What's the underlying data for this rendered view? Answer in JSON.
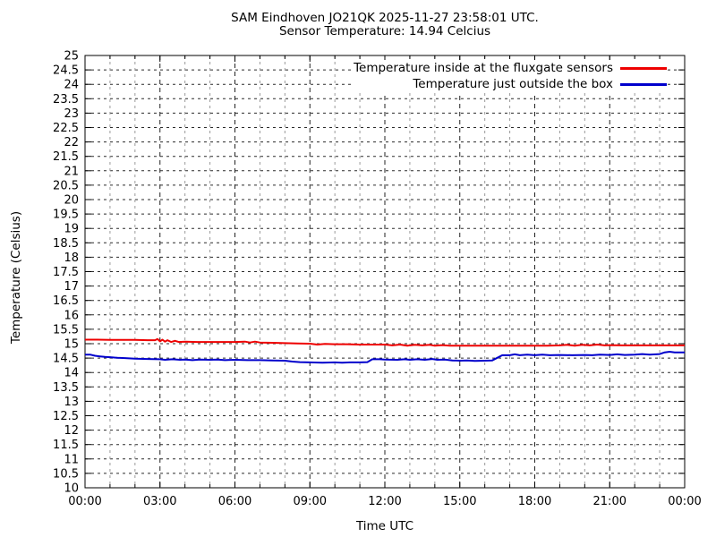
{
  "chart_data": {
    "type": "line",
    "title": "SAM Eindhoven JO21QK 2025-11-27 23:58:01 UTC.",
    "subtitle": "Sensor Temperature: 14.94 Celcius",
    "xlabel": "Time UTC",
    "ylabel": "Temperature (Celsius)",
    "x_unit": "hours",
    "xlim": [
      0,
      24
    ],
    "ylim": [
      10,
      25
    ],
    "ytick_step": 0.5,
    "x_minor_step_hours": 1,
    "grid": true,
    "legend_position": "top-right-inside",
    "xtick_hours": [
      0,
      3,
      6,
      9,
      12,
      15,
      18,
      21,
      24
    ],
    "xtick_labels": [
      "00:00",
      "03:00",
      "06:00",
      "09:00",
      "12:00",
      "15:00",
      "18:00",
      "21:00",
      "00:00"
    ],
    "series": [
      {
        "name": "Temperature inside at the fluxgate sensors",
        "color": "#ee0000",
        "points": [
          [
            0,
            15.14
          ],
          [
            0.5,
            15.14
          ],
          [
            1,
            15.13
          ],
          [
            1.5,
            15.13
          ],
          [
            2,
            15.13
          ],
          [
            2.5,
            15.12
          ],
          [
            2.8,
            15.12
          ],
          [
            2.9,
            15.16
          ],
          [
            3.0,
            15.08
          ],
          [
            3.1,
            15.14
          ],
          [
            3.2,
            15.07
          ],
          [
            3.3,
            15.12
          ],
          [
            3.45,
            15.06
          ],
          [
            3.6,
            15.1
          ],
          [
            3.75,
            15.06
          ],
          [
            4,
            15.07
          ],
          [
            4.5,
            15.06
          ],
          [
            5,
            15.06
          ],
          [
            5.5,
            15.06
          ],
          [
            6,
            15.06
          ],
          [
            6.4,
            15.07
          ],
          [
            6.6,
            15.04
          ],
          [
            6.8,
            15.07
          ],
          [
            7,
            15.04
          ],
          [
            7.5,
            15.03
          ],
          [
            8,
            15.02
          ],
          [
            8.5,
            15.01
          ],
          [
            9,
            15.0
          ],
          [
            9.3,
            14.97
          ],
          [
            9.6,
            14.99
          ],
          [
            10,
            14.98
          ],
          [
            10.5,
            14.98
          ],
          [
            11,
            14.97
          ],
          [
            11.5,
            14.97
          ],
          [
            12,
            14.97
          ],
          [
            12.3,
            14.94
          ],
          [
            12.6,
            14.97
          ],
          [
            12.9,
            14.93
          ],
          [
            13.2,
            14.96
          ],
          [
            13.5,
            14.94
          ],
          [
            13.8,
            14.96
          ],
          [
            14,
            14.93
          ],
          [
            14.3,
            14.95
          ],
          [
            14.6,
            14.93
          ],
          [
            15,
            14.93
          ],
          [
            15.5,
            14.93
          ],
          [
            16,
            14.93
          ],
          [
            16.5,
            14.93
          ],
          [
            17,
            14.93
          ],
          [
            17.5,
            14.93
          ],
          [
            18,
            14.93
          ],
          [
            18.5,
            14.93
          ],
          [
            19,
            14.94
          ],
          [
            19.3,
            14.96
          ],
          [
            19.6,
            14.93
          ],
          [
            19.9,
            14.96
          ],
          [
            20.2,
            14.94
          ],
          [
            20.5,
            14.97
          ],
          [
            20.8,
            14.94
          ],
          [
            21,
            14.95
          ],
          [
            21.5,
            14.94
          ],
          [
            22,
            14.94
          ],
          [
            22.5,
            14.94
          ],
          [
            23,
            14.94
          ],
          [
            23.5,
            14.94
          ],
          [
            24,
            14.94
          ]
        ]
      },
      {
        "name": "Temperature just outside the box",
        "color": "#0000cc",
        "points": [
          [
            0,
            14.62
          ],
          [
            0.2,
            14.62
          ],
          [
            0.4,
            14.58
          ],
          [
            0.6,
            14.56
          ],
          [
            0.8,
            14.54
          ],
          [
            1,
            14.53
          ],
          [
            1.3,
            14.51
          ],
          [
            1.6,
            14.5
          ],
          [
            2,
            14.48
          ],
          [
            2.5,
            14.47
          ],
          [
            3,
            14.46
          ],
          [
            3.2,
            14.44
          ],
          [
            3.5,
            14.46
          ],
          [
            3.8,
            14.44
          ],
          [
            4,
            14.45
          ],
          [
            4.3,
            14.43
          ],
          [
            4.6,
            14.45
          ],
          [
            5,
            14.44
          ],
          [
            5.3,
            14.45
          ],
          [
            5.6,
            14.43
          ],
          [
            6,
            14.44
          ],
          [
            6.5,
            14.43
          ],
          [
            7,
            14.43
          ],
          [
            7.5,
            14.42
          ],
          [
            8,
            14.41
          ],
          [
            8.3,
            14.38
          ],
          [
            8.6,
            14.36
          ],
          [
            9,
            14.35
          ],
          [
            9.5,
            14.34
          ],
          [
            10,
            14.35
          ],
          [
            10.3,
            14.34
          ],
          [
            10.6,
            14.35
          ],
          [
            11,
            14.35
          ],
          [
            11.3,
            14.36
          ],
          [
            11.5,
            14.46
          ],
          [
            11.8,
            14.46
          ],
          [
            12,
            14.45
          ],
          [
            12.5,
            14.44
          ],
          [
            12.8,
            14.46
          ],
          [
            13,
            14.44
          ],
          [
            13.3,
            14.46
          ],
          [
            13.6,
            14.44
          ],
          [
            13.9,
            14.47
          ],
          [
            14.1,
            14.44
          ],
          [
            14.4,
            14.45
          ],
          [
            14.7,
            14.42
          ],
          [
            15,
            14.41
          ],
          [
            15.3,
            14.42
          ],
          [
            15.6,
            14.4
          ],
          [
            16,
            14.41
          ],
          [
            16.3,
            14.42
          ],
          [
            16.5,
            14.51
          ],
          [
            16.7,
            14.6
          ],
          [
            17,
            14.6
          ],
          [
            17.2,
            14.63
          ],
          [
            17.4,
            14.6
          ],
          [
            17.7,
            14.62
          ],
          [
            18,
            14.6
          ],
          [
            18.3,
            14.62
          ],
          [
            18.6,
            14.6
          ],
          [
            19,
            14.61
          ],
          [
            19.5,
            14.6
          ],
          [
            20,
            14.61
          ],
          [
            20.3,
            14.6
          ],
          [
            20.6,
            14.62
          ],
          [
            21,
            14.61
          ],
          [
            21.3,
            14.63
          ],
          [
            21.6,
            14.61
          ],
          [
            22,
            14.62
          ],
          [
            22.3,
            14.64
          ],
          [
            22.6,
            14.62
          ],
          [
            23,
            14.64
          ],
          [
            23.2,
            14.7
          ],
          [
            23.4,
            14.72
          ],
          [
            23.6,
            14.7
          ],
          [
            24,
            14.7
          ]
        ]
      }
    ]
  }
}
